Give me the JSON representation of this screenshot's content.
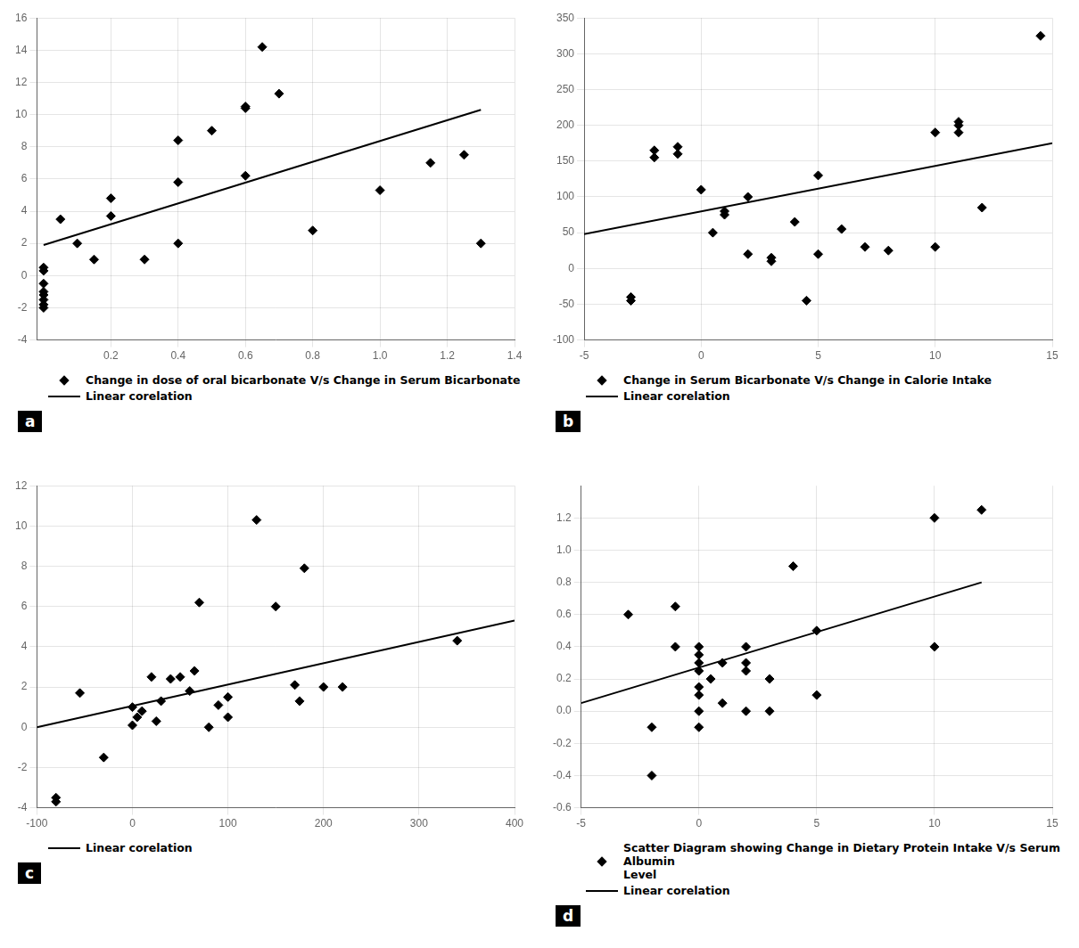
{
  "chart_data": [
    {
      "type": "scatter",
      "series": [
        {
          "name": "Change in dose of oral bicarbonate V/s Change in Serum Bicarbonate",
          "type": "scatter",
          "marker": "diamond",
          "color": "black",
          "x": [
            0.0,
            0.0,
            0.0,
            0.0,
            0.0,
            0.0,
            0.0,
            0.0,
            0.05,
            0.1,
            0.15,
            0.2,
            0.2,
            0.3,
            0.4,
            0.4,
            0.4,
            0.5,
            0.6,
            0.6,
            0.6,
            0.65,
            0.7,
            0.8,
            1.0,
            1.15,
            1.25,
            1.3
          ],
          "values": [
            0.5,
            0.3,
            -0.5,
            -1.0,
            -1.2,
            -1.5,
            -1.8,
            -2.0,
            3.5,
            2.0,
            1.0,
            4.8,
            3.7,
            1.0,
            8.4,
            5.8,
            2.0,
            9.0,
            10.4,
            10.5,
            6.2,
            14.2,
            11.3,
            2.8,
            5.3,
            7.0,
            7.5,
            2.0
          ]
        },
        {
          "name": "Linear corelation",
          "type": "line",
          "color": "black",
          "x": [
            0.0,
            1.3
          ],
          "values": [
            1.9,
            10.3
          ]
        }
      ],
      "xlim": [
        -0.02,
        1.4
      ],
      "ylim": [
        -4,
        16
      ],
      "xticks": [
        0.2,
        0.4,
        0.6,
        0.8,
        {
          "value": 1.0,
          "label": "1.0"
        },
        1.2,
        1.4
      ],
      "yticks": [
        -4,
        -2,
        0,
        2,
        4,
        6,
        8,
        10,
        12,
        14,
        16
      ],
      "grid": true,
      "annotations": [
        "a"
      ]
    },
    {
      "type": "scatter",
      "series": [
        {
          "name": "Change in Serum Bicarbonate V/s Change in Calorie Intake",
          "type": "scatter",
          "marker": "diamond",
          "color": "black",
          "x": [
            -3,
            -3,
            -2,
            -2,
            -1,
            -1,
            0,
            0.5,
            1,
            1,
            2,
            2,
            3,
            3,
            4,
            4.5,
            5,
            5,
            6,
            7,
            8,
            10,
            10,
            11,
            11,
            11,
            12,
            14.5
          ],
          "values": [
            -45,
            -40,
            155,
            165,
            160,
            170,
            110,
            50,
            80,
            75,
            20,
            100,
            15,
            10,
            65,
            -45,
            130,
            20,
            55,
            30,
            25,
            190,
            30,
            200,
            205,
            190,
            85,
            325
          ]
        },
        {
          "name": "Linear corelation",
          "type": "line",
          "color": "black",
          "x": [
            -5,
            15
          ],
          "values": [
            48,
            175
          ]
        }
      ],
      "xlim": [
        -5,
        15
      ],
      "ylim": [
        -100,
        350
      ],
      "xticks": [
        -5,
        0,
        5,
        10,
        15
      ],
      "yticks": [
        -100,
        -50,
        0,
        50,
        100,
        150,
        200,
        250,
        300,
        350
      ],
      "grid": true,
      "annotations": [
        "b"
      ]
    },
    {
      "type": "scatter",
      "series": [
        {
          "type": "scatter",
          "marker": "diamond",
          "color": "black",
          "x": [
            -80,
            -80,
            -55,
            -30,
            0,
            0,
            5,
            10,
            20,
            25,
            30,
            40,
            50,
            60,
            65,
            70,
            80,
            90,
            100,
            100,
            130,
            150,
            170,
            175,
            180,
            200,
            220,
            340
          ],
          "values": [
            -3.5,
            -3.7,
            1.7,
            -1.5,
            0.1,
            1.0,
            0.5,
            0.8,
            2.5,
            0.3,
            1.3,
            2.4,
            2.5,
            1.8,
            2.8,
            6.2,
            0.0,
            1.1,
            0.5,
            1.5,
            10.3,
            6.0,
            2.1,
            1.3,
            7.9,
            2.0,
            2.0,
            4.3
          ]
        },
        {
          "name": "Linear corelation",
          "type": "line",
          "color": "black",
          "x": [
            -100,
            400
          ],
          "values": [
            0.0,
            5.3
          ]
        }
      ],
      "xlim": [
        -100,
        400
      ],
      "ylim": [
        -4,
        12
      ],
      "xticks": [
        -100,
        0,
        100,
        200,
        300,
        400
      ],
      "yticks": [
        -4,
        -2,
        0,
        2,
        4,
        6,
        8,
        10,
        12
      ],
      "grid": true,
      "annotations": [
        "c"
      ]
    },
    {
      "type": "scatter",
      "series": [
        {
          "name": "Scatter Diagram showing Change in Dietary Protein Intake V/s Serum Albumin\nLevel",
          "type": "scatter",
          "marker": "diamond",
          "color": "black",
          "x": [
            -3,
            -2,
            -2,
            -1,
            -1,
            0,
            0,
            0,
            0,
            0,
            0,
            0,
            0,
            0.5,
            1,
            1,
            2,
            2,
            2,
            2,
            3,
            3,
            4,
            5,
            5,
            10,
            10,
            12
          ],
          "values": [
            0.6,
            -0.4,
            -0.1,
            0.65,
            0.4,
            0.4,
            0.35,
            0.3,
            0.25,
            0.15,
            0.1,
            0.0,
            -0.1,
            0.2,
            0.3,
            0.05,
            0.4,
            0.3,
            0.25,
            0.0,
            0.2,
            0.0,
            0.9,
            0.5,
            0.1,
            0.4,
            1.2,
            1.25
          ]
        },
        {
          "name": "Linear corelation",
          "type": "line",
          "color": "black",
          "x": [
            -5,
            12
          ],
          "values": [
            0.05,
            0.8
          ]
        }
      ],
      "xlim": [
        -5,
        15
      ],
      "ylim": [
        -0.6,
        1.4
      ],
      "xticks": [
        -5,
        0,
        5,
        10,
        15
      ],
      "yticks": [
        -0.6,
        -0.4,
        -0.2,
        {
          "value": 0.0,
          "label": "0.0"
        },
        0.2,
        0.4,
        0.6,
        0.8,
        {
          "value": 1.0,
          "label": "1.0"
        },
        1.2
      ],
      "grid": true,
      "annotations": [
        "d"
      ]
    }
  ]
}
